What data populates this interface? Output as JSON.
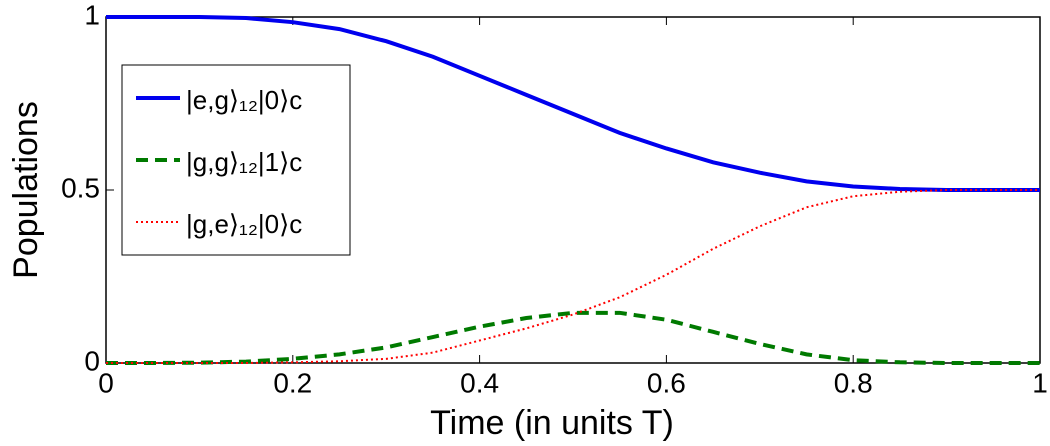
{
  "chart_data": {
    "type": "line",
    "xlabel": "Time (in units T)",
    "ylabel": "Populations",
    "x": [
      0,
      0.05,
      0.1,
      0.15,
      0.2,
      0.25,
      0.3,
      0.35,
      0.4,
      0.45,
      0.5,
      0.55,
      0.6,
      0.65,
      0.7,
      0.75,
      0.8,
      0.85,
      0.9,
      0.95,
      1
    ],
    "series": [
      {
        "name": "|e,g⟩₁₂|0⟩c",
        "color": "#0000ee",
        "style": "solid",
        "values": [
          1,
          1,
          1,
          0.997,
          0.985,
          0.965,
          0.93,
          0.885,
          0.83,
          0.775,
          0.72,
          0.665,
          0.62,
          0.58,
          0.55,
          0.525,
          0.51,
          0.503,
          0.5,
          0.5,
          0.5
        ]
      },
      {
        "name": "|g,g⟩₁₂|1⟩c",
        "color": "#007a00",
        "style": "dashed",
        "values": [
          0,
          0,
          0.001,
          0.004,
          0.012,
          0.025,
          0.045,
          0.075,
          0.105,
          0.13,
          0.145,
          0.145,
          0.125,
          0.09,
          0.055,
          0.025,
          0.008,
          0.002,
          0,
          0,
          0
        ]
      },
      {
        "name": "|g,e⟩₁₂|0⟩c",
        "color": "#ff0000",
        "style": "dotted",
        "values": [
          0,
          0,
          0,
          0,
          0.002,
          0.005,
          0.012,
          0.03,
          0.065,
          0.1,
          0.14,
          0.19,
          0.255,
          0.33,
          0.395,
          0.45,
          0.482,
          0.495,
          0.5,
          0.5,
          0.5
        ]
      }
    ],
    "xlim": [
      0,
      1
    ],
    "xticks": [
      0,
      0.2,
      0.4,
      0.6,
      0.8,
      1
    ],
    "ylim": [
      0,
      1
    ],
    "yticks": [
      0,
      0.5,
      1
    ],
    "legend": "upper left"
  }
}
